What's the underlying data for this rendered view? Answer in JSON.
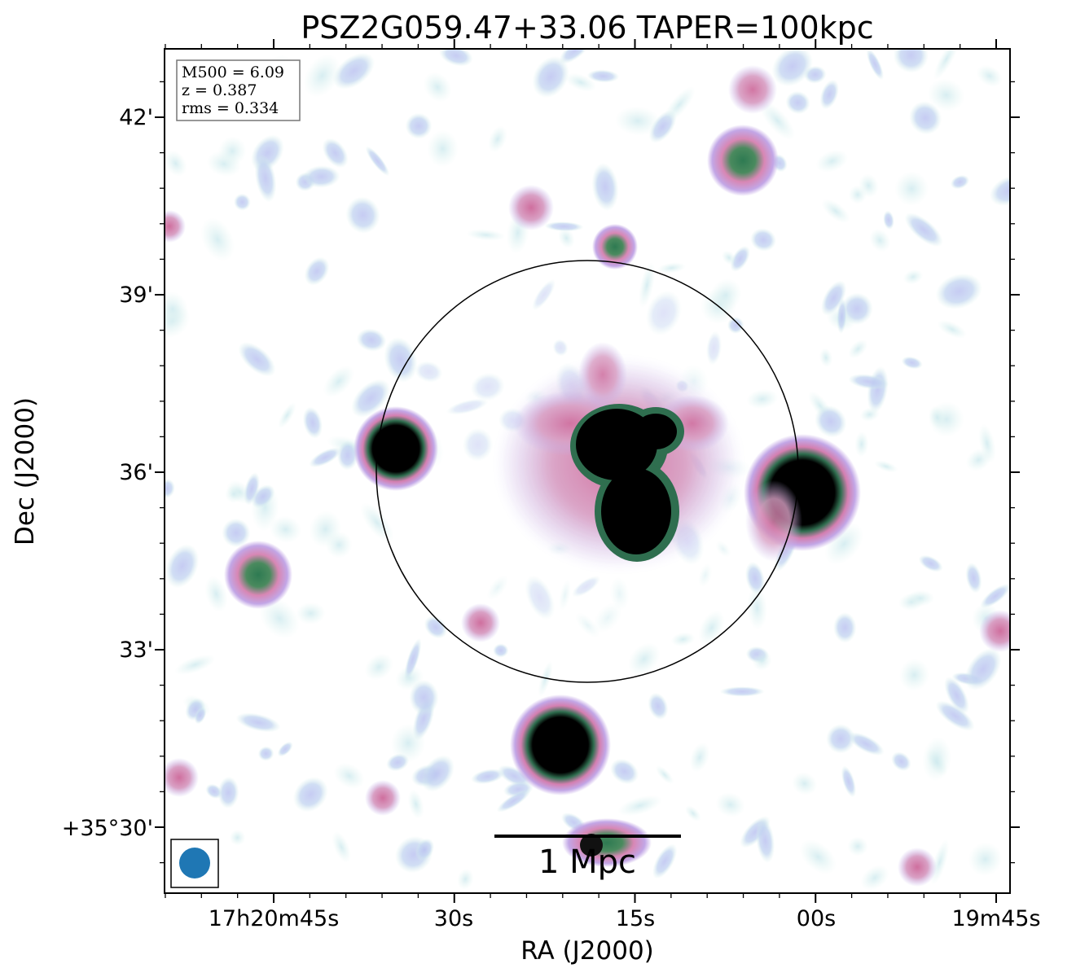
{
  "title": "PSZ2G059.47+33.06 TAPER=100kpc",
  "info_box": {
    "lines": [
      "M500 = 6.09",
      "z = 0.387",
      "rms = 0.334"
    ]
  },
  "axes": {
    "xlabel": "RA (J2000)",
    "ylabel": "Dec (J2000)",
    "x_ticks": [
      "17h20m45s",
      "30s",
      "15s",
      "00s",
      "19m45s"
    ],
    "y_ticks": [
      "42'",
      "39'",
      "36'",
      "33'",
      "+35°30'"
    ]
  },
  "scale_bar": {
    "label": "1 Mpc"
  },
  "colors": {
    "beam": "#1f77b4",
    "background": "#ffffff",
    "faint": "#cfeee8",
    "mid": "#b7c8ee",
    "pink": "#d887b4",
    "green": "#3b7a57",
    "core": "#000000"
  }
}
